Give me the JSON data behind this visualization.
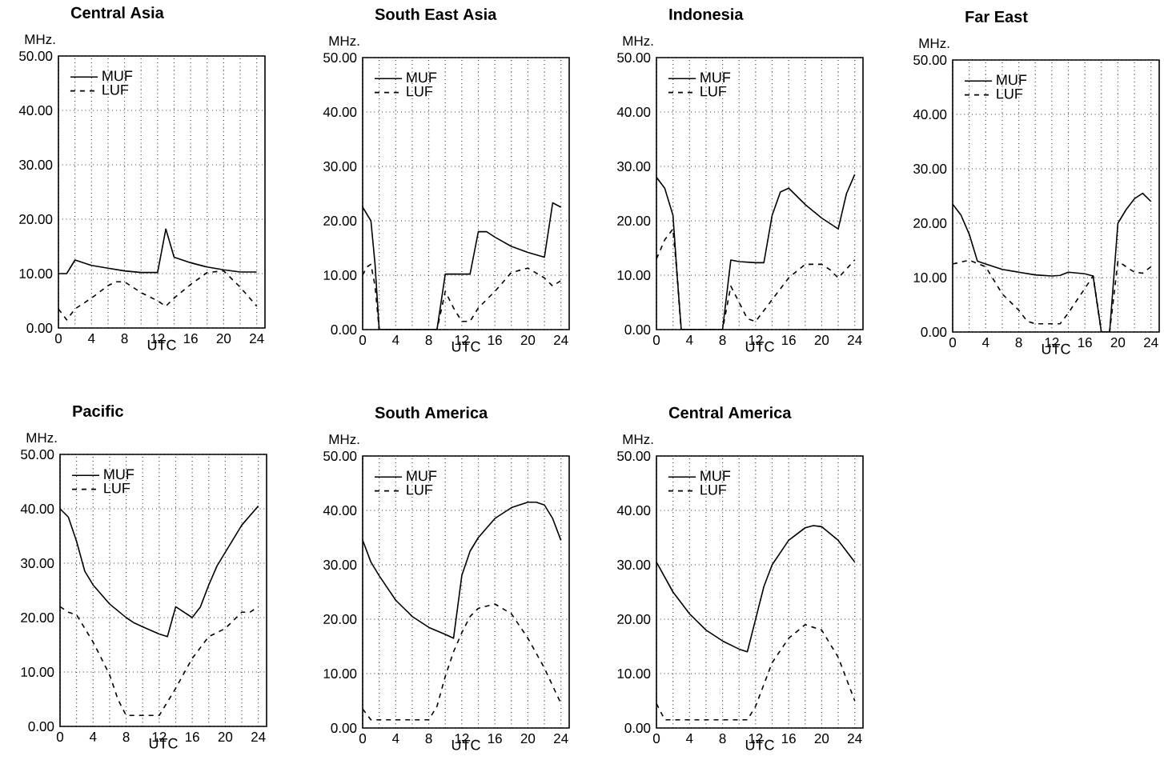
{
  "chart_data": [
    {
      "type": "line",
      "title": "Central Asia",
      "xlabel": "UTC",
      "ylabel": "MHz.",
      "xlim": [
        0,
        25
      ],
      "ylim": [
        0,
        50
      ],
      "xticks": [
        0,
        {
          "value": 2,
          "label": null
        },
        4,
        {
          "value": 6,
          "label": null
        },
        8,
        {
          "value": 10,
          "label": null
        },
        12,
        {
          "value": 14,
          "label": null
        },
        16,
        {
          "value": 18,
          "label": null
        },
        20,
        {
          "value": 22,
          "label": null
        },
        24
      ],
      "yticks": [
        {
          "value": 0,
          "label": "0.00"
        },
        {
          "value": 10,
          "label": "10.00"
        },
        {
          "value": 20,
          "label": "20.00"
        },
        {
          "value": 30,
          "label": "30.00"
        },
        {
          "value": 40,
          "label": "40.00"
        },
        {
          "value": 50,
          "label": "50.00"
        }
      ],
      "grid": true,
      "legend": "top left",
      "series": [
        {
          "name": "MUF",
          "color": "#000000",
          "line_style": "solid",
          "x": [
            0,
            1,
            2,
            4,
            6,
            8,
            10,
            12,
            13,
            14,
            16,
            18,
            20,
            22,
            24
          ],
          "values": [
            10,
            10,
            12.5,
            11.5,
            11,
            10.5,
            10.2,
            10.2,
            18.2,
            13,
            12,
            11.2,
            10.7,
            10.3,
            10.3
          ]
        },
        {
          "name": "LUF",
          "color": "#000000",
          "line_style": "dashed",
          "x": [
            0,
            1,
            2,
            4,
            6,
            7,
            8,
            10,
            12,
            13,
            14,
            16,
            18,
            20,
            22,
            24
          ],
          "values": [
            3.5,
            1.5,
            3.5,
            5.5,
            7.8,
            8.5,
            8.5,
            6.5,
            5,
            4,
            5.5,
            8,
            10.2,
            10.5,
            7.5,
            4
          ]
        }
      ]
    },
    {
      "type": "line",
      "title": "South East Asia",
      "xlabel": "UTC",
      "ylabel": "MHz.",
      "xlim": [
        0,
        25
      ],
      "ylim": [
        0,
        50
      ],
      "xticks": [
        0,
        {
          "value": 2,
          "label": null
        },
        4,
        {
          "value": 6,
          "label": null
        },
        8,
        {
          "value": 10,
          "label": null
        },
        12,
        {
          "value": 14,
          "label": null
        },
        16,
        {
          "value": 18,
          "label": null
        },
        20,
        {
          "value": 22,
          "label": null
        },
        24
      ],
      "yticks": [
        {
          "value": 0,
          "label": "0.00"
        },
        {
          "value": 10,
          "label": "10.00"
        },
        {
          "value": 20,
          "label": "20.00"
        },
        {
          "value": 30,
          "label": "30.00"
        },
        {
          "value": 40,
          "label": "40.00"
        },
        {
          "value": 50,
          "label": "50.00"
        }
      ],
      "grid": true,
      "legend": "top left",
      "series": [
        {
          "name": "MUF",
          "color": "#000000",
          "line_style": "solid",
          "x": [
            0,
            1,
            1.5,
            2,
            9,
            10,
            13,
            14,
            15,
            16,
            18,
            20,
            22,
            23,
            24
          ],
          "values": [
            22.5,
            20,
            12,
            0,
            0,
            10.2,
            10.2,
            18,
            18,
            17,
            15.3,
            14.2,
            13.3,
            23.3,
            22.5
          ]
        },
        {
          "name": "LUF",
          "color": "#000000",
          "line_style": "dashed",
          "x": [
            0,
            0.5,
            1,
            1.5,
            2,
            9,
            10,
            11,
            12,
            13,
            14,
            16,
            18,
            20,
            22,
            23,
            24
          ],
          "values": [
            10,
            11.5,
            12,
            8,
            0,
            0,
            7,
            4,
            1.5,
            1.5,
            4,
            7,
            10.5,
            11.3,
            9.5,
            8,
            9
          ]
        }
      ]
    },
    {
      "type": "line",
      "title": "Indonesia",
      "xlabel": "UTC",
      "ylabel": "MHz.",
      "xlim": [
        0,
        25
      ],
      "ylim": [
        0,
        50
      ],
      "xticks": [
        0,
        {
          "value": 2,
          "label": null
        },
        4,
        {
          "value": 6,
          "label": null
        },
        8,
        {
          "value": 10,
          "label": null
        },
        12,
        {
          "value": 14,
          "label": null
        },
        16,
        {
          "value": 18,
          "label": null
        },
        20,
        {
          "value": 22,
          "label": null
        },
        24
      ],
      "yticks": [
        {
          "value": 0,
          "label": "0.00"
        },
        {
          "value": 10,
          "label": "10.00"
        },
        {
          "value": 20,
          "label": "20.00"
        },
        {
          "value": 30,
          "label": "30.00"
        },
        {
          "value": 40,
          "label": "40.00"
        },
        {
          "value": 50,
          "label": "50.00"
        }
      ],
      "grid": true,
      "legend": "top left",
      "series": [
        {
          "name": "MUF",
          "color": "#000000",
          "line_style": "solid",
          "x": [
            0,
            1,
            2,
            2.5,
            3,
            8,
            9,
            10,
            12,
            13,
            14,
            15,
            16,
            18,
            20,
            22,
            23,
            24
          ],
          "values": [
            28,
            26,
            21,
            10,
            0,
            0,
            12.8,
            12.5,
            12.3,
            12.3,
            21,
            25.3,
            26,
            23,
            20.5,
            18.5,
            25,
            28.5
          ]
        },
        {
          "name": "LUF",
          "color": "#000000",
          "line_style": "dashed",
          "x": [
            0,
            1,
            2,
            2.5,
            3,
            8,
            9,
            10,
            11,
            12,
            14,
            16,
            18,
            20,
            21,
            22,
            24
          ],
          "values": [
            13,
            16.5,
            18.5,
            10,
            0,
            0,
            8,
            5,
            2,
            1.5,
            5.5,
            9.5,
            12,
            12,
            11,
            9.5,
            12.8
          ]
        }
      ]
    },
    {
      "type": "line",
      "title": "Far East",
      "xlabel": "UTC",
      "ylabel": "MHz.",
      "xlim": [
        0,
        25
      ],
      "ylim": [
        0,
        50
      ],
      "xticks": [
        0,
        {
          "value": 2,
          "label": null
        },
        4,
        {
          "value": 6,
          "label": null
        },
        8,
        {
          "value": 10,
          "label": null
        },
        12,
        {
          "value": 14,
          "label": null
        },
        16,
        {
          "value": 18,
          "label": null
        },
        20,
        {
          "value": 22,
          "label": null
        },
        24
      ],
      "yticks": [
        {
          "value": 0,
          "label": "0.00"
        },
        {
          "value": 10,
          "label": "10.00"
        },
        {
          "value": 20,
          "label": "20.00"
        },
        {
          "value": 30,
          "label": "30.00"
        },
        {
          "value": 40,
          "label": "40.00"
        },
        {
          "value": 50,
          "label": "50.00"
        }
      ],
      "grid": true,
      "legend": "top left",
      "series": [
        {
          "name": "MUF",
          "color": "#000000",
          "line_style": "solid",
          "x": [
            0,
            1,
            2,
            3,
            4,
            6,
            8,
            10,
            12,
            13,
            14,
            16,
            17,
            18,
            19,
            20,
            21,
            22,
            23,
            24
          ],
          "values": [
            23.5,
            21.5,
            18,
            13,
            12.5,
            11.5,
            11,
            10.5,
            10.3,
            10.4,
            11,
            10.7,
            10.3,
            0,
            0,
            20,
            22.5,
            24.5,
            25.5,
            24
          ]
        },
        {
          "name": "LUF",
          "color": "#000000",
          "line_style": "dashed",
          "x": [
            0,
            2,
            4,
            6,
            8,
            9,
            10,
            12,
            13,
            14,
            16,
            17,
            18,
            19,
            20,
            22,
            23,
            24
          ],
          "values": [
            12.5,
            13.2,
            12,
            7,
            4,
            2,
            1.5,
            1.5,
            1.5,
            3.5,
            8,
            10.3,
            0,
            0,
            13,
            11,
            10.8,
            12
          ]
        }
      ]
    },
    {
      "type": "line",
      "title": "Pacific",
      "xlabel": "UTC",
      "ylabel": "MHz.",
      "xlim": [
        0,
        25
      ],
      "ylim": [
        0,
        50
      ],
      "xticks": [
        0,
        {
          "value": 2,
          "label": null
        },
        4,
        {
          "value": 6,
          "label": null
        },
        8,
        {
          "value": 10,
          "label": null
        },
        12,
        {
          "value": 14,
          "label": null
        },
        16,
        {
          "value": 18,
          "label": null
        },
        20,
        {
          "value": 22,
          "label": null
        },
        24
      ],
      "yticks": [
        {
          "value": 0,
          "label": "0.00"
        },
        {
          "value": 10,
          "label": "10.00"
        },
        {
          "value": 20,
          "label": "20.00"
        },
        {
          "value": 30,
          "label": "30.00"
        },
        {
          "value": 40,
          "label": "40.00"
        },
        {
          "value": 50,
          "label": "50.00"
        }
      ],
      "grid": true,
      "legend": "top left",
      "series": [
        {
          "name": "MUF",
          "color": "#000000",
          "line_style": "solid",
          "x": [
            0,
            1,
            2,
            3,
            4,
            6,
            8,
            9,
            10,
            12,
            13,
            14,
            16,
            17,
            18,
            19,
            20,
            22,
            24
          ],
          "values": [
            40,
            38.5,
            34,
            28.5,
            26,
            22.5,
            20,
            19,
            18.3,
            17,
            16.5,
            22,
            20,
            22,
            26,
            29.5,
            32,
            37,
            40.5
          ]
        },
        {
          "name": "LUF",
          "color": "#000000",
          "line_style": "dashed",
          "x": [
            0,
            1,
            2,
            4,
            6,
            7,
            8,
            10,
            12,
            14,
            16,
            18,
            20,
            22,
            23,
            24
          ],
          "values": [
            22,
            21,
            20.5,
            15.5,
            9.5,
            5,
            2,
            2,
            2,
            7,
            12.5,
            16.5,
            18,
            21,
            21,
            22
          ]
        }
      ]
    },
    {
      "type": "line",
      "title": "South America",
      "xlabel": "UTC",
      "ylabel": "MHz.",
      "xlim": [
        0,
        25
      ],
      "ylim": [
        0,
        50
      ],
      "xticks": [
        0,
        {
          "value": 2,
          "label": null
        },
        4,
        {
          "value": 6,
          "label": null
        },
        8,
        {
          "value": 10,
          "label": null
        },
        12,
        {
          "value": 14,
          "label": null
        },
        16,
        {
          "value": 18,
          "label": null
        },
        20,
        {
          "value": 22,
          "label": null
        },
        24
      ],
      "yticks": [
        {
          "value": 0,
          "label": "0.00"
        },
        {
          "value": 10,
          "label": "10.00"
        },
        {
          "value": 20,
          "label": "20.00"
        },
        {
          "value": 30,
          "label": "30.00"
        },
        {
          "value": 40,
          "label": "40.00"
        },
        {
          "value": 50,
          "label": "50.00"
        }
      ],
      "grid": true,
      "legend": "top left",
      "series": [
        {
          "name": "MUF",
          "color": "#000000",
          "line_style": "solid",
          "x": [
            0,
            1,
            2,
            4,
            6,
            8,
            10,
            11,
            12,
            13,
            14,
            16,
            18,
            20,
            21,
            22,
            23,
            24
          ],
          "values": [
            34.5,
            30.5,
            28,
            23.5,
            20.5,
            18.5,
            17.2,
            16.5,
            28,
            32.5,
            35,
            38.5,
            40.5,
            41.5,
            41.5,
            41,
            38.5,
            34.5
          ]
        },
        {
          "name": "LUF",
          "color": "#000000",
          "line_style": "dashed",
          "x": [
            0,
            1,
            2,
            4,
            6,
            8,
            9,
            10,
            11,
            12,
            13,
            14,
            16,
            18,
            20,
            22,
            24
          ],
          "values": [
            3.5,
            1.5,
            1.5,
            1.5,
            1.5,
            1.5,
            4,
            9.5,
            14,
            17.5,
            20.5,
            22,
            22.8,
            21,
            16.5,
            11,
            4.5
          ]
        }
      ]
    },
    {
      "type": "line",
      "title": "Central America",
      "xlabel": "UTC",
      "ylabel": "MHz.",
      "xlim": [
        0,
        25
      ],
      "ylim": [
        0,
        50
      ],
      "xticks": [
        0,
        {
          "value": 2,
          "label": null
        },
        4,
        {
          "value": 6,
          "label": null
        },
        8,
        {
          "value": 10,
          "label": null
        },
        12,
        {
          "value": 14,
          "label": null
        },
        16,
        {
          "value": 18,
          "label": null
        },
        20,
        {
          "value": 22,
          "label": null
        },
        24
      ],
      "yticks": [
        {
          "value": 0,
          "label": "0.00"
        },
        {
          "value": 10,
          "label": "10.00"
        },
        {
          "value": 20,
          "label": "20.00"
        },
        {
          "value": 30,
          "label": "30.00"
        },
        {
          "value": 40,
          "label": "40.00"
        },
        {
          "value": 50,
          "label": "50.00"
        }
      ],
      "grid": true,
      "legend": "top left",
      "series": [
        {
          "name": "MUF",
          "color": "#000000",
          "line_style": "solid",
          "x": [
            0,
            2,
            4,
            6,
            8,
            10,
            11,
            12,
            13,
            14,
            16,
            18,
            19,
            20,
            22,
            24
          ],
          "values": [
            30.5,
            25,
            21,
            18,
            16,
            14.5,
            14,
            20,
            26,
            30,
            34.5,
            36.8,
            37.2,
            37,
            34.5,
            30.5
          ]
        },
        {
          "name": "LUF",
          "color": "#000000",
          "line_style": "dashed",
          "x": [
            0,
            1,
            4,
            8,
            11,
            12,
            13,
            14,
            16,
            18,
            20,
            22,
            24
          ],
          "values": [
            4.5,
            1.5,
            1.5,
            1.5,
            1.5,
            4,
            8,
            12,
            16.5,
            19,
            18,
            13,
            5
          ]
        }
      ]
    }
  ]
}
